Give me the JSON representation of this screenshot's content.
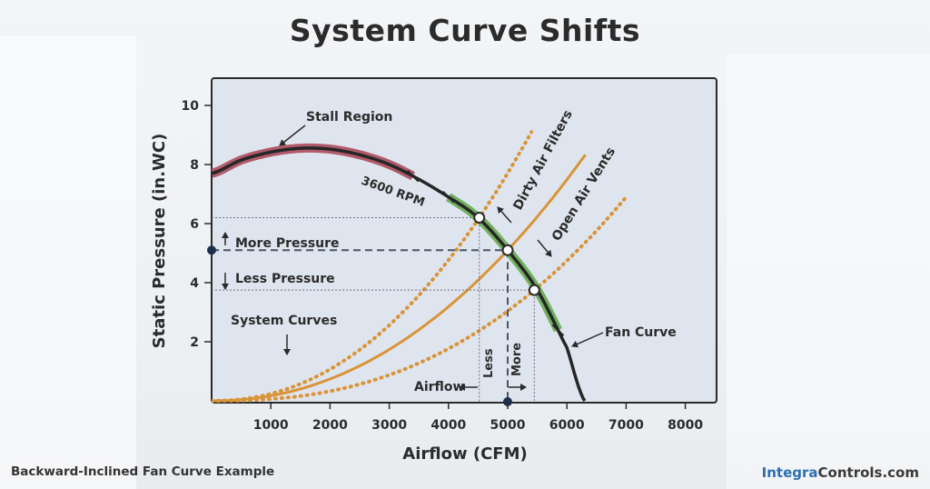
{
  "page": {
    "title": "System Curve Shifts",
    "footer_caption": "Backward-Inclined Fan Curve Example",
    "brand_part1": "Integra",
    "brand_part2": "Controls.com"
  },
  "chart_data": {
    "type": "line",
    "title": "System Curve Shifts",
    "xlabel": "Airflow (CFM)",
    "ylabel": "Static Pressure (in.WC)",
    "xlim": [
      0,
      8400
    ],
    "ylim": [
      0,
      11
    ],
    "xticks": [
      1000,
      2000,
      3000,
      4000,
      5000,
      6000,
      7000,
      8000
    ],
    "xtick_labels": [
      "1000",
      "2000",
      "3000",
      "4000",
      "5000",
      "6000",
      "7000",
      "8000"
    ],
    "yticks": [
      2,
      4,
      6,
      8,
      10
    ],
    "ytick_labels": [
      "2",
      "4",
      "6",
      "8",
      "10"
    ],
    "grid": false,
    "fan_curve": {
      "name": "Fan Curve",
      "speed_label": "3600 RPM",
      "color": "#262626",
      "x": [
        0,
        500,
        1000,
        1500,
        2000,
        2500,
        3000,
        3500,
        4000,
        4500,
        5000,
        5500,
        6000,
        6300
      ],
      "y": [
        7.7,
        8.15,
        8.42,
        8.55,
        8.52,
        8.33,
        8.0,
        7.5,
        6.9,
        6.2,
        5.1,
        3.75,
        1.8,
        0
      ]
    },
    "stall_region": {
      "label": "Stall Region",
      "x_range": [
        0,
        3400
      ],
      "color": "#b05a6a"
    },
    "operating_range": {
      "x_range": [
        4000,
        5850
      ],
      "color": "#72b061"
    },
    "system_curves": {
      "label": "System Curves",
      "color": "#d99438",
      "series": [
        {
          "name": "Dirty Air Filters",
          "style": "dotted",
          "points": [
            [
              0,
              0
            ],
            [
              4520,
              6.2
            ],
            [
              5400,
              9.1
            ]
          ]
        },
        {
          "style": "solid",
          "points": [
            [
              0,
              0
            ],
            [
              5000,
              5.1
            ],
            [
              6300,
              8.3
            ]
          ]
        },
        {
          "name": "Open Air Vents",
          "style": "dotted",
          "points": [
            [
              0,
              0
            ],
            [
              5450,
              3.75
            ],
            [
              7000,
              6.9
            ]
          ]
        }
      ]
    },
    "operating_points": [
      {
        "x": 4520,
        "y": 6.2
      },
      {
        "x": 5000,
        "y": 5.1
      },
      {
        "x": 5450,
        "y": 3.75
      }
    ],
    "annotations": {
      "more_pressure": "More Pressure",
      "less_pressure": "Less Pressure",
      "airflow": "Airflow",
      "less": "Less",
      "more": "More",
      "dirty_air_filters": "Dirty Air Filters",
      "open_air_vents": "Open Air Vents",
      "stall_region": "Stall Region",
      "fan_curve": "Fan Curve",
      "system_curves": "System Curves",
      "rpm": "3600 RPM"
    },
    "reference_point": {
      "x": 5000,
      "y": 5.1,
      "color": "#1e2f4a"
    }
  }
}
